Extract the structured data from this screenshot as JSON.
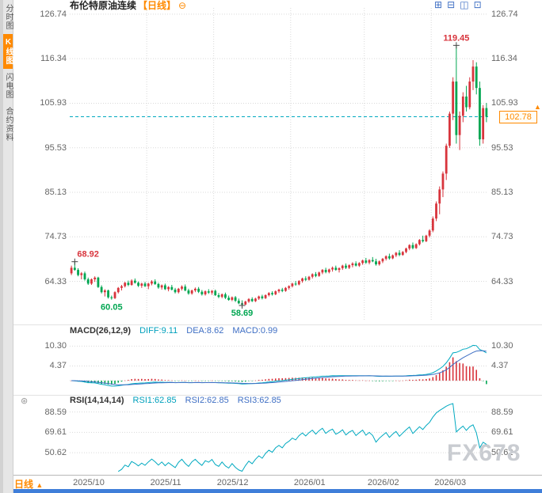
{
  "sidebar": {
    "tabs": [
      {
        "label": "分时图"
      },
      {
        "label": "K线图"
      },
      {
        "label": "闪电图"
      },
      {
        "label": "合约资料"
      }
    ]
  },
  "header": {
    "title": "布伦特原油连续",
    "period": "【日线】",
    "collapse": "⊖"
  },
  "toolbar": {
    "icons": [
      "⊞",
      "⊟",
      "◫",
      "⊡"
    ]
  },
  "footer": {
    "period": "日线",
    "arrow": "▲"
  },
  "watermark": "FX678",
  "colors": {
    "up": "#d8343c",
    "down": "#00a651",
    "teal": "#00a9c0",
    "blue": "#3f6fc4",
    "grid": "#d9d9d9",
    "axis_text": "#666666",
    "accent": "#ff8a00"
  },
  "chart_data": {
    "type": "candlestick",
    "title": "布伦特原油连续 日线",
    "current_price": "102.78",
    "y_axis": {
      "ticks": [
        "126.74",
        "116.34",
        "105.93",
        "95.53",
        "85.13",
        "74.73",
        "64.33"
      ],
      "min": 55,
      "max": 128.2
    },
    "x_axis": {
      "labels": [
        "2025/10",
        "2025/11",
        "2025/12",
        "2026/01",
        "2026/02",
        "2026/03"
      ],
      "month_start_indices": [
        0,
        23,
        43,
        66,
        88,
        108
      ]
    },
    "annotations": [
      {
        "text": "68.92",
        "index": 1,
        "side": "above",
        "color": "up",
        "marker": true
      },
      {
        "text": "60.05",
        "index": 12,
        "side": "below",
        "color": "down",
        "marker": false
      },
      {
        "text": "58.69",
        "index": 51,
        "side": "below",
        "color": "down",
        "marker": true
      },
      {
        "text": "119.45",
        "index": 115,
        "side": "above",
        "color": "up",
        "marker": true
      }
    ],
    "candles": [
      [
        66.2,
        68.0,
        65.8,
        67.5
      ],
      [
        67.5,
        68.92,
        66.8,
        67.0
      ],
      [
        67.0,
        67.4,
        65.5,
        65.8
      ],
      [
        65.8,
        66.5,
        64.8,
        66.2
      ],
      [
        66.2,
        66.6,
        64.5,
        64.8
      ],
      [
        64.8,
        65.2,
        63.5,
        63.8
      ],
      [
        63.8,
        65.0,
        63.5,
        64.8
      ],
      [
        64.8,
        65.5,
        64.2,
        65.2
      ],
      [
        65.2,
        65.4,
        62.8,
        63.0
      ],
      [
        63.0,
        63.4,
        61.5,
        61.8
      ],
      [
        61.8,
        62.5,
        60.8,
        62.2
      ],
      [
        62.2,
        62.4,
        60.3,
        60.6
      ],
      [
        60.6,
        61.0,
        60.05,
        60.4
      ],
      [
        60.4,
        62.0,
        60.2,
        61.8
      ],
      [
        61.8,
        63.0,
        61.5,
        62.8
      ],
      [
        62.8,
        63.5,
        62.2,
        63.2
      ],
      [
        63.2,
        64.2,
        62.9,
        64.0
      ],
      [
        64.0,
        64.5,
        63.2,
        63.5
      ],
      [
        63.5,
        64.8,
        63.3,
        64.5
      ],
      [
        64.5,
        65.0,
        63.8,
        64.0
      ],
      [
        64.0,
        64.3,
        63.0,
        63.3
      ],
      [
        63.3,
        64.0,
        62.8,
        63.8
      ],
      [
        63.8,
        64.2,
        63.0,
        63.2
      ],
      [
        63.2,
        64.0,
        62.5,
        63.8
      ],
      [
        63.8,
        64.6,
        63.4,
        64.3
      ],
      [
        64.3,
        64.8,
        63.5,
        63.7
      ],
      [
        63.7,
        64.0,
        62.6,
        62.9
      ],
      [
        62.9,
        63.6,
        62.4,
        63.4
      ],
      [
        63.4,
        63.8,
        62.3,
        62.5
      ],
      [
        62.5,
        63.2,
        62.0,
        63.0
      ],
      [
        63.0,
        63.5,
        62.2,
        62.4
      ],
      [
        62.4,
        62.8,
        61.5,
        61.8
      ],
      [
        61.8,
        62.8,
        61.5,
        62.6
      ],
      [
        62.6,
        63.4,
        62.2,
        63.1
      ],
      [
        63.1,
        63.6,
        62.0,
        62.2
      ],
      [
        62.2,
        62.6,
        61.2,
        61.5
      ],
      [
        61.5,
        62.4,
        61.2,
        62.2
      ],
      [
        62.2,
        62.9,
        61.8,
        62.6
      ],
      [
        62.6,
        63.0,
        61.6,
        61.9
      ],
      [
        61.9,
        62.3,
        61.0,
        61.3
      ],
      [
        61.3,
        62.2,
        61.0,
        62.0
      ],
      [
        62.0,
        62.5,
        61.4,
        61.7
      ],
      [
        61.7,
        62.3,
        61.2,
        62.1
      ],
      [
        62.1,
        62.4,
        60.9,
        61.1
      ],
      [
        61.1,
        61.6,
        60.4,
        60.7
      ],
      [
        60.7,
        61.5,
        60.4,
        61.3
      ],
      [
        61.3,
        61.7,
        60.2,
        60.5
      ],
      [
        60.5,
        61.0,
        59.8,
        60.0
      ],
      [
        60.0,
        60.8,
        59.7,
        60.6
      ],
      [
        60.6,
        60.9,
        59.5,
        59.8
      ],
      [
        59.8,
        60.3,
        59.0,
        59.2
      ],
      [
        59.2,
        59.9,
        58.69,
        58.9
      ],
      [
        58.9,
        59.8,
        58.8,
        59.6
      ],
      [
        59.6,
        60.4,
        59.3,
        60.2
      ],
      [
        60.2,
        60.6,
        59.5,
        59.7
      ],
      [
        59.7,
        60.5,
        59.5,
        60.3
      ],
      [
        60.3,
        61.0,
        60.0,
        60.8
      ],
      [
        60.8,
        61.2,
        60.1,
        60.4
      ],
      [
        60.4,
        61.3,
        60.2,
        61.1
      ],
      [
        61.1,
        61.8,
        60.8,
        61.6
      ],
      [
        61.6,
        62.0,
        61.0,
        61.3
      ],
      [
        61.3,
        62.2,
        61.1,
        62.0
      ],
      [
        62.0,
        62.6,
        61.6,
        62.4
      ],
      [
        62.4,
        62.8,
        61.8,
        62.1
      ],
      [
        62.1,
        63.0,
        61.9,
        62.8
      ],
      [
        62.8,
        63.4,
        62.4,
        63.2
      ],
      [
        63.2,
        64.0,
        62.9,
        63.8
      ],
      [
        63.8,
        64.4,
        63.3,
        63.6
      ],
      [
        63.6,
        64.6,
        63.4,
        64.4
      ],
      [
        64.4,
        65.2,
        64.0,
        65.0
      ],
      [
        65.0,
        65.5,
        64.4,
        64.7
      ],
      [
        64.7,
        65.6,
        64.5,
        65.4
      ],
      [
        65.4,
        66.2,
        65.0,
        66.0
      ],
      [
        66.0,
        66.5,
        65.3,
        65.6
      ],
      [
        65.6,
        66.6,
        65.4,
        66.4
      ],
      [
        66.4,
        67.2,
        66.0,
        67.0
      ],
      [
        67.0,
        67.5,
        66.2,
        66.5
      ],
      [
        66.5,
        67.3,
        66.2,
        67.1
      ],
      [
        67.1,
        67.8,
        66.6,
        67.5
      ],
      [
        67.5,
        68.0,
        66.8,
        67.0
      ],
      [
        67.0,
        67.6,
        66.4,
        67.4
      ],
      [
        67.4,
        68.2,
        67.0,
        68.0
      ],
      [
        68.0,
        68.5,
        67.2,
        67.5
      ],
      [
        67.5,
        68.3,
        67.2,
        68.1
      ],
      [
        68.1,
        68.8,
        67.6,
        68.5
      ],
      [
        68.5,
        69.0,
        67.8,
        68.0
      ],
      [
        68.0,
        68.8,
        67.7,
        68.6
      ],
      [
        68.6,
        69.4,
        68.2,
        69.2
      ],
      [
        69.2,
        69.8,
        68.4,
        68.7
      ],
      [
        68.7,
        69.5,
        68.3,
        69.3
      ],
      [
        69.3,
        70.0,
        68.8,
        69.0
      ],
      [
        69.0,
        69.6,
        68.0,
        68.3
      ],
      [
        68.3,
        69.2,
        68.0,
        69.0
      ],
      [
        69.0,
        69.8,
        68.6,
        69.6
      ],
      [
        69.6,
        70.4,
        69.2,
        70.2
      ],
      [
        70.2,
        70.8,
        69.4,
        69.7
      ],
      [
        69.7,
        70.6,
        69.5,
        70.4
      ],
      [
        70.4,
        71.2,
        70.0,
        71.0
      ],
      [
        71.0,
        71.6,
        70.2,
        70.5
      ],
      [
        70.5,
        71.4,
        70.3,
        71.2
      ],
      [
        71.2,
        72.2,
        70.9,
        72.0
      ],
      [
        72.0,
        73.0,
        71.6,
        72.8
      ],
      [
        72.8,
        73.4,
        71.8,
        72.1
      ],
      [
        72.1,
        73.2,
        71.9,
        73.0
      ],
      [
        73.0,
        74.2,
        72.7,
        74.0
      ],
      [
        74.0,
        75.0,
        73.4,
        73.7
      ],
      [
        73.7,
        75.2,
        73.5,
        75.0
      ],
      [
        75.0,
        76.5,
        74.6,
        76.2
      ],
      [
        76.2,
        79.5,
        75.8,
        79.0
      ],
      [
        79.0,
        83.0,
        78.4,
        82.5
      ],
      [
        82.5,
        86.5,
        80.0,
        85.8
      ],
      [
        85.8,
        90.0,
        84.0,
        89.5
      ],
      [
        89.5,
        96.5,
        88.0,
        96.0
      ],
      [
        96.0,
        104.0,
        95.5,
        103.5
      ],
      [
        103.5,
        112.0,
        102.0,
        111.0
      ],
      [
        111.0,
        119.45,
        96.5,
        98.5
      ],
      [
        98.5,
        104.0,
        95.0,
        103.0
      ],
      [
        103.0,
        108.5,
        101.5,
        107.5
      ],
      [
        107.5,
        110.0,
        104.0,
        105.0
      ],
      [
        105.0,
        112.0,
        104.5,
        111.0
      ],
      [
        111.0,
        116.0,
        109.0,
        114.5
      ],
      [
        114.5,
        115.5,
        108.0,
        109.5
      ],
      [
        109.5,
        111.0,
        96.0,
        97.5
      ],
      [
        97.5,
        105.5,
        96.5,
        104.8
      ],
      [
        104.8,
        106.0,
        101.5,
        102.78
      ]
    ],
    "macd": {
      "name": "MACD(26,12,9)",
      "diff": "DIFF:9.11",
      "dea": "DEA:8.62",
      "macd": "MACD:0.99",
      "ticks": [
        "10.30",
        "4.37"
      ]
    },
    "rsi": {
      "name": "RSI(14,14,14)",
      "r1": "RSI1:62.85",
      "r2": "RSI2:62.85",
      "r3": "RSI3:62.85",
      "ticks": [
        "88.59",
        "69.61",
        "50.62"
      ]
    }
  }
}
